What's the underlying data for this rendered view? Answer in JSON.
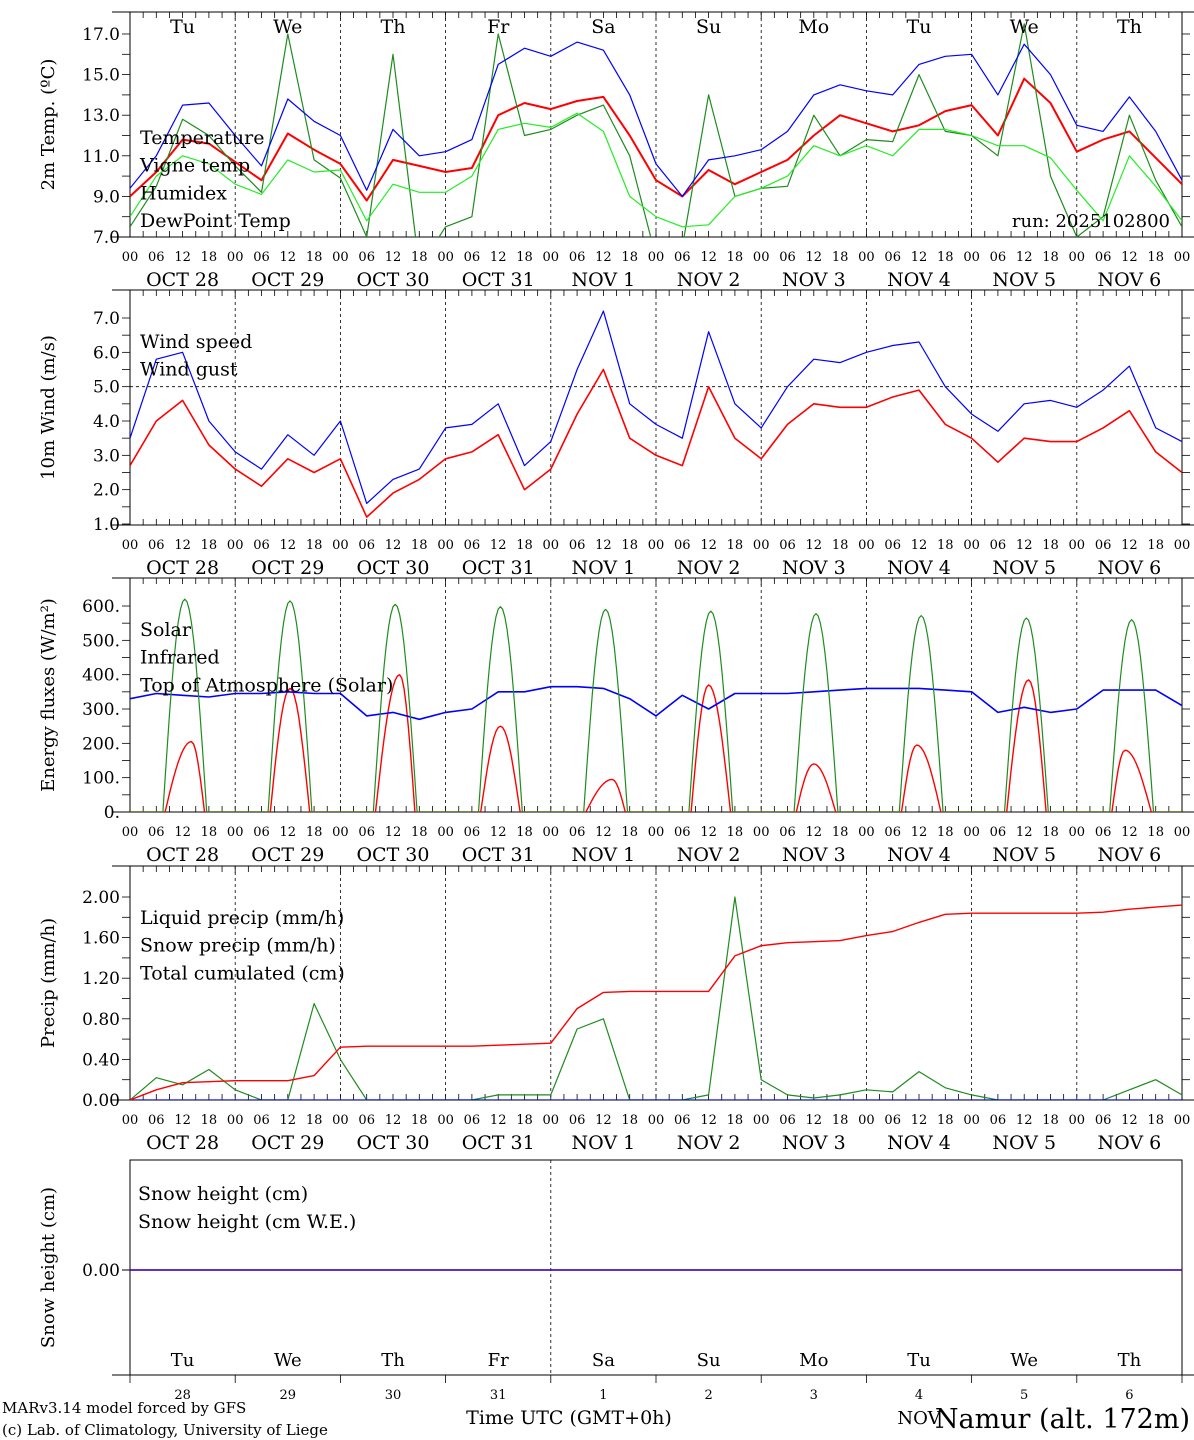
{
  "days": {
    "weekdays": [
      "Tu",
      "We",
      "Th",
      "Fr",
      "Sa",
      "Su",
      "Mo",
      "Tu",
      "We",
      "Th"
    ],
    "weekday_colors": [
      "#000000",
      "#000000",
      "#000000",
      "#000000",
      "#ff0000",
      "#ff0000",
      "#000000",
      "#000000",
      "#000000",
      "#000000"
    ],
    "date_labels": [
      "OCT  28",
      "OCT  29",
      "OCT  30",
      "OCT  31",
      "NOV   1",
      "NOV   2",
      "NOV   3",
      "NOV   4",
      "NOV   5",
      "NOV   6"
    ],
    "day_numbers": [
      "28",
      "29",
      "30",
      "31",
      "1",
      "2",
      "3",
      "4",
      "5",
      "6"
    ],
    "month_label": "NOV",
    "hour_ticks": [
      "00",
      "06",
      "12",
      "18"
    ],
    "final_hour": "00"
  },
  "colors": {
    "red": "#ff0000",
    "blue": "#0000ff",
    "dark_green": "#1e8c1e",
    "light_green": "#22ee22"
  },
  "footer": {
    "model_line": "MARv3.14 model forced by GFS",
    "credit_line": "(c) Lab. of Climatology, University of Liege",
    "xlabel": "Time UTC (GMT+0h)",
    "station": "Namur (alt. 172m)"
  },
  "chart_data": [
    {
      "id": "temp",
      "type": "line",
      "ylabel": "2m Temp. (ºC)",
      "ylim": [
        7,
        17
      ],
      "yticks": [
        "7.0",
        "9.0",
        "11.0",
        "13.0",
        "15.0",
        "17.0"
      ],
      "ytick_values": [
        7,
        9,
        11,
        13,
        15,
        17
      ],
      "run_label": "run: 2025102800",
      "x_step_hours": 6,
      "x_start": "2025-10-28 00 UTC",
      "series": [
        {
          "name": "Temperature",
          "color": "#ff0000",
          "width": 2,
          "values": [
            9.0,
            10.2,
            11.8,
            11.6,
            10.7,
            9.8,
            12.1,
            11.3,
            10.6,
            8.8,
            10.8,
            10.5,
            10.2,
            10.4,
            13.0,
            13.6,
            13.3,
            13.7,
            13.9,
            12.0,
            9.8,
            9.0,
            10.3,
            9.6,
            10.2,
            10.8,
            12.0,
            13.0,
            12.6,
            12.2,
            12.5,
            13.2,
            13.5,
            12.0,
            14.8,
            13.6,
            11.2,
            11.8,
            12.2,
            10.9,
            9.6
          ]
        },
        {
          "name": "Vigne temp",
          "color": "#1e8c1e",
          "width": 1.2,
          "values": [
            7.5,
            9.5,
            12.8,
            12.0,
            10.5,
            9.2,
            17.0,
            10.8,
            9.9,
            7.0,
            16.0,
            5.5,
            7.5,
            8.0,
            17.0,
            12.0,
            12.3,
            13.0,
            13.5,
            11.0,
            6.0,
            6.5,
            14.0,
            9.0,
            9.4,
            9.5,
            13.0,
            11.0,
            11.8,
            11.7,
            15.0,
            12.2,
            12.0,
            11.0,
            17.5,
            10.0,
            7.0,
            8.0,
            13.0,
            9.8,
            7.5
          ]
        },
        {
          "name": "Humidex",
          "color": "#0000ff",
          "width": 1.2,
          "values": [
            9.4,
            11.0,
            13.5,
            13.6,
            12.0,
            10.5,
            13.8,
            12.7,
            12.0,
            9.3,
            12.3,
            11.0,
            11.2,
            11.8,
            15.5,
            16.3,
            15.9,
            16.6,
            16.2,
            14.0,
            10.6,
            9.0,
            10.8,
            11.0,
            11.3,
            12.2,
            14.0,
            14.5,
            14.2,
            14.0,
            15.5,
            15.9,
            16.0,
            14.0,
            16.5,
            15.0,
            12.5,
            12.2,
            13.9,
            12.2,
            9.8
          ]
        },
        {
          "name": "DewPoint Temp",
          "color": "#22ee22",
          "width": 1.2,
          "values": [
            8.0,
            10.0,
            11.0,
            10.6,
            9.6,
            9.1,
            10.8,
            10.2,
            10.3,
            7.8,
            9.6,
            9.2,
            9.2,
            10.0,
            12.3,
            12.6,
            12.4,
            13.1,
            12.2,
            9.0,
            8.0,
            7.5,
            7.6,
            9.0,
            9.4,
            10.0,
            11.5,
            11.0,
            11.5,
            11.0,
            12.3,
            12.3,
            12.0,
            11.5,
            11.5,
            10.9,
            9.3,
            7.8,
            11.0,
            9.5,
            7.8
          ]
        }
      ]
    },
    {
      "id": "wind",
      "type": "line",
      "ylabel": "10m Wind (m/s)",
      "ylim": [
        1,
        7
      ],
      "yticks": [
        "1.0",
        "2.0",
        "3.0",
        "4.0",
        "5.0",
        "6.0",
        "7.0"
      ],
      "ytick_values": [
        1,
        2,
        3,
        4,
        5,
        6,
        7
      ],
      "reference_line": 5.0,
      "x_step_hours": 6,
      "series": [
        {
          "name": "Wind speed",
          "color": "#ff0000",
          "width": 1.6,
          "values": [
            2.7,
            4.0,
            4.6,
            3.3,
            2.6,
            2.1,
            2.9,
            2.5,
            2.9,
            1.2,
            1.9,
            2.3,
            2.9,
            3.1,
            3.6,
            2.0,
            2.6,
            4.2,
            5.5,
            3.5,
            3.0,
            2.7,
            5.0,
            3.5,
            2.9,
            3.9,
            4.5,
            4.4,
            4.4,
            4.7,
            4.9,
            3.9,
            3.5,
            2.8,
            3.5,
            3.4,
            3.4,
            3.8,
            4.3,
            3.1,
            2.5
          ]
        },
        {
          "name": "Wind gust",
          "color": "#0000ff",
          "width": 1.2,
          "values": [
            3.5,
            5.8,
            6.0,
            4.0,
            3.1,
            2.6,
            3.6,
            3.0,
            4.0,
            1.6,
            2.3,
            2.6,
            3.8,
            3.9,
            4.5,
            2.7,
            3.4,
            5.5,
            7.2,
            4.5,
            3.9,
            3.5,
            6.6,
            4.5,
            3.8,
            5.0,
            5.8,
            5.7,
            6.0,
            6.2,
            6.3,
            5.0,
            4.2,
            3.7,
            4.5,
            4.6,
            4.4,
            4.9,
            5.6,
            3.8,
            3.4
          ]
        }
      ]
    },
    {
      "id": "energy",
      "type": "line",
      "ylabel": "Energy fluxes (W/m²)",
      "ylim": [
        0,
        600
      ],
      "yticks": [
        "0.",
        "100.",
        "200.",
        "300.",
        "400.",
        "500.",
        "600."
      ],
      "ytick_values": [
        0,
        100,
        200,
        300,
        400,
        500,
        600
      ],
      "x_step_hours": 6,
      "series": [
        {
          "name": "Solar",
          "color": "#ff0000",
          "width": 1.4,
          "daily_peak": [
            205,
            360,
            400,
            250,
            95,
            370,
            140,
            195,
            385,
            180
          ],
          "daily_peak_hour": [
            14,
            12.5,
            13.5,
            12.5,
            14,
            12,
            12,
            11.5,
            13,
            11
          ],
          "daylight_hours": [
            8,
            17
          ]
        },
        {
          "name": "Infrared",
          "color": "#0000ff",
          "width": 1.6,
          "values": [
            330,
            345,
            340,
            335,
            345,
            345,
            350,
            345,
            345,
            280,
            290,
            270,
            290,
            300,
            350,
            350,
            365,
            365,
            360,
            330,
            280,
            340,
            300,
            345,
            345,
            345,
            350,
            355,
            360,
            360,
            360,
            355,
            350,
            290,
            305,
            290,
            300,
            355,
            355,
            355,
            310
          ]
        },
        {
          "name": "Top of Atmosphere (Solar)",
          "color": "#1e8c1e",
          "width": 1.2,
          "daily_peak": [
            620,
            615,
            605,
            598,
            590,
            585,
            578,
            572,
            565,
            560
          ],
          "daylight_hours": [
            7.5,
            17.5
          ]
        }
      ]
    },
    {
      "id": "precip",
      "type": "line",
      "ylabel": "Precip (mm/h)",
      "ylim": [
        0,
        2
      ],
      "yticks": [
        "0.00",
        "0.40",
        "0.80",
        "1.20",
        "1.60",
        "2.00"
      ],
      "ytick_values": [
        0,
        0.4,
        0.8,
        1.2,
        1.6,
        2.0
      ],
      "x_step_hours": 6,
      "series": [
        {
          "name": "Liquid precip (mm/h)",
          "color": "#1e8c1e",
          "width": 1.2,
          "values": [
            0,
            0.22,
            0.15,
            0.3,
            0.1,
            0,
            0,
            0.95,
            0.4,
            0,
            0,
            0,
            0,
            0,
            0.05,
            0.05,
            0.05,
            0.7,
            0.8,
            0,
            0,
            0,
            0.05,
            2.0,
            0.2,
            0.05,
            0.02,
            0.05,
            0.1,
            0.08,
            0.28,
            0.12,
            0.05,
            0,
            0,
            0,
            0,
            0,
            0.1,
            0.2,
            0.05
          ]
        },
        {
          "name": "Snow precip (mm/h)",
          "color": "#0000ff",
          "width": 1.2,
          "values": [
            0,
            0,
            0,
            0,
            0,
            0,
            0,
            0,
            0,
            0,
            0,
            0,
            0,
            0,
            0,
            0,
            0,
            0,
            0,
            0,
            0,
            0,
            0,
            0,
            0,
            0,
            0,
            0,
            0,
            0,
            0,
            0,
            0,
            0,
            0,
            0,
            0,
            0,
            0,
            0,
            0
          ]
        },
        {
          "name": "Total cumulated (cm)",
          "color": "#ff0000",
          "width": 1.4,
          "values": [
            0,
            0.1,
            0.17,
            0.18,
            0.19,
            0.19,
            0.19,
            0.24,
            0.52,
            0.53,
            0.53,
            0.53,
            0.53,
            0.53,
            0.54,
            0.55,
            0.56,
            0.9,
            1.06,
            1.07,
            1.07,
            1.07,
            1.07,
            1.42,
            1.52,
            1.55,
            1.56,
            1.57,
            1.62,
            1.66,
            1.75,
            1.83,
            1.84,
            1.84,
            1.84,
            1.84,
            1.84,
            1.85,
            1.88,
            1.9,
            1.92
          ]
        }
      ]
    },
    {
      "id": "snow",
      "type": "line",
      "ylabel": "Snow height (cm)",
      "ylim": [
        -1,
        1
      ],
      "yticks": [
        "0.00"
      ],
      "ytick_values": [
        0
      ],
      "x_step_hours": 6,
      "series": [
        {
          "name": "Snow height (cm)",
          "color": "#ff0000",
          "width": 1.4,
          "values": [
            0,
            0,
            0,
            0,
            0,
            0,
            0,
            0,
            0,
            0,
            0,
            0,
            0,
            0,
            0,
            0,
            0,
            0,
            0,
            0,
            0,
            0,
            0,
            0,
            0,
            0,
            0,
            0,
            0,
            0,
            0,
            0,
            0,
            0,
            0,
            0,
            0,
            0,
            0,
            0,
            0
          ]
        },
        {
          "name": "Snow height (cm W.E.)",
          "color": "#0000ff",
          "width": 1.2,
          "values": [
            0,
            0,
            0,
            0,
            0,
            0,
            0,
            0,
            0,
            0,
            0,
            0,
            0,
            0,
            0,
            0,
            0,
            0,
            0,
            0,
            0,
            0,
            0,
            0,
            0,
            0,
            0,
            0,
            0,
            0,
            0,
            0,
            0,
            0,
            0,
            0,
            0,
            0,
            0,
            0,
            0
          ]
        }
      ]
    }
  ]
}
